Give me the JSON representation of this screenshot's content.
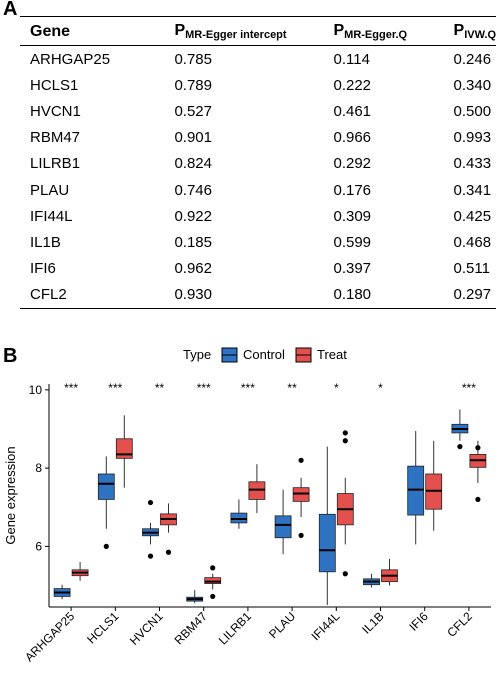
{
  "panel_a": {
    "label": "A",
    "headers": {
      "gene": "Gene",
      "p": "P",
      "egger_intercept_sub": "MR-Egger intercept",
      "egger_q_sub": "MR-Egger.Q",
      "ivw_q_sub": "IVW.Q"
    },
    "rows": [
      {
        "gene": "ARHGAP25",
        "egger_intercept": "0.785",
        "egger_q": "0.114",
        "ivw_q": "0.246"
      },
      {
        "gene": "HCLS1",
        "egger_intercept": "0.789",
        "egger_q": "0.222",
        "ivw_q": "0.340"
      },
      {
        "gene": "HVCN1",
        "egger_intercept": "0.527",
        "egger_q": "0.461",
        "ivw_q": "0.500"
      },
      {
        "gene": "RBM47",
        "egger_intercept": "0.901",
        "egger_q": "0.966",
        "ivw_q": "0.993"
      },
      {
        "gene": "LILRB1",
        "egger_intercept": "0.824",
        "egger_q": "0.292",
        "ivw_q": "0.433"
      },
      {
        "gene": "PLAU",
        "egger_intercept": "0.746",
        "egger_q": "0.176",
        "ivw_q": "0.341"
      },
      {
        "gene": "IFI44L",
        "egger_intercept": "0.922",
        "egger_q": "0.309",
        "ivw_q": "0.425"
      },
      {
        "gene": "IL1B",
        "egger_intercept": "0.185",
        "egger_q": "0.599",
        "ivw_q": "0.468"
      },
      {
        "gene": "IFI6",
        "egger_intercept": "0.962",
        "egger_q": "0.397",
        "ivw_q": "0.511"
      },
      {
        "gene": "CFL2",
        "egger_intercept": "0.930",
        "egger_q": "0.180",
        "ivw_q": "0.297"
      }
    ]
  },
  "panel_b": {
    "label": "B"
  },
  "chart_data": {
    "type": "boxplot",
    "ylabel": "Gene expression",
    "ylim": [
      4.45,
      10.15
    ],
    "yticks": [
      6,
      8,
      10
    ],
    "legend": {
      "title": "Type",
      "position": "top"
    },
    "series_colors": {
      "Control": "#2f72c1",
      "Treat": "#e4504e"
    },
    "categories": [
      "ARHGAP25",
      "HCLS1",
      "HVCN1",
      "RBM47",
      "LILRB1",
      "PLAU",
      "IFI44L",
      "IL1B",
      "IFI6",
      "CFL2"
    ],
    "significance": [
      "***",
      "***",
      "**",
      "***",
      "***",
      "**",
      "*",
      "*",
      "",
      "***"
    ],
    "series": [
      {
        "name": "Control",
        "boxes": [
          {
            "min": 4.65,
            "q1": 4.72,
            "median": 4.82,
            "q3": 4.92,
            "max": 5.02,
            "outliers": []
          },
          {
            "min": 6.45,
            "q1": 7.2,
            "median": 7.6,
            "q3": 7.85,
            "max": 8.3,
            "outliers": [
              6.0
            ]
          },
          {
            "min": 6.05,
            "q1": 6.27,
            "median": 6.35,
            "q3": 6.45,
            "max": 6.6,
            "outliers": [
              7.12,
              5.75
            ]
          },
          {
            "min": 4.55,
            "q1": 4.6,
            "median": 4.65,
            "q3": 4.7,
            "max": 4.88,
            "outliers": []
          },
          {
            "min": 6.45,
            "q1": 6.6,
            "median": 6.7,
            "q3": 6.85,
            "max": 7.2,
            "outliers": []
          },
          {
            "min": 5.8,
            "q1": 6.22,
            "median": 6.55,
            "q3": 6.78,
            "max": 7.45,
            "outliers": []
          },
          {
            "min": 4.5,
            "q1": 5.35,
            "median": 5.9,
            "q3": 6.82,
            "max": 8.55,
            "outliers": []
          },
          {
            "min": 4.95,
            "q1": 5.02,
            "median": 5.1,
            "q3": 5.17,
            "max": 5.3,
            "outliers": []
          },
          {
            "min": 6.05,
            "q1": 6.8,
            "median": 7.45,
            "q3": 8.05,
            "max": 8.95,
            "outliers": []
          },
          {
            "min": 8.7,
            "q1": 8.9,
            "median": 9.0,
            "q3": 9.12,
            "max": 9.5,
            "outliers": [
              8.55
            ]
          }
        ]
      },
      {
        "name": "Treat",
        "boxes": [
          {
            "min": 5.12,
            "q1": 5.25,
            "median": 5.33,
            "q3": 5.4,
            "max": 5.6,
            "outliers": []
          },
          {
            "min": 7.5,
            "q1": 8.25,
            "median": 8.35,
            "q3": 8.75,
            "max": 9.35,
            "outliers": []
          },
          {
            "min": 6.35,
            "q1": 6.55,
            "median": 6.7,
            "q3": 6.83,
            "max": 7.1,
            "outliers": [
              5.85
            ]
          },
          {
            "min": 4.9,
            "q1": 5.05,
            "median": 5.1,
            "q3": 5.2,
            "max": 5.3,
            "outliers": [
              5.45,
              4.72
            ]
          },
          {
            "min": 6.85,
            "q1": 7.2,
            "median": 7.45,
            "q3": 7.65,
            "max": 8.1,
            "outliers": []
          },
          {
            "min": 6.75,
            "q1": 7.15,
            "median": 7.35,
            "q3": 7.5,
            "max": 7.75,
            "outliers": [
              8.2,
              6.28
            ]
          },
          {
            "min": 6.05,
            "q1": 6.55,
            "median": 6.95,
            "q3": 7.35,
            "max": 7.75,
            "outliers": [
              8.9,
              8.7,
              5.3
            ]
          },
          {
            "min": 5.0,
            "q1": 5.1,
            "median": 5.25,
            "q3": 5.4,
            "max": 5.68,
            "outliers": []
          },
          {
            "min": 6.4,
            "q1": 6.95,
            "median": 7.42,
            "q3": 7.85,
            "max": 8.7,
            "outliers": []
          },
          {
            "min": 7.62,
            "q1": 8.02,
            "median": 8.2,
            "q3": 8.35,
            "max": 8.7,
            "outliers": [
              8.52,
              7.2
            ]
          }
        ]
      }
    ]
  }
}
